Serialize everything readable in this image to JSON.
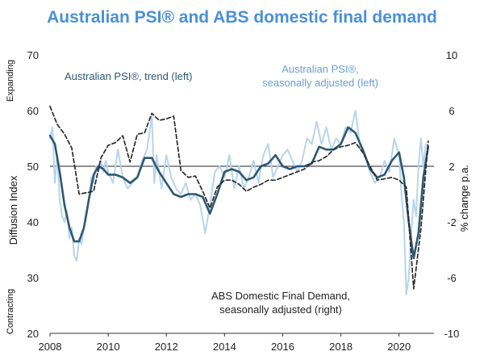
{
  "chart_data": {
    "type": "line",
    "title": "Australian PSI® and ABS domestic final demand",
    "left_axis": {
      "label": "Diffusion Index",
      "range": [
        20,
        70
      ],
      "ticks": [
        "20",
        "30",
        "40",
        "50",
        "60",
        "70"
      ],
      "top_label": "Expanding",
      "bottom_label": "Contracting"
    },
    "right_axis": {
      "label": "% change p.a.",
      "range": [
        -10,
        10
      ],
      "ticks": [
        "-10",
        "-6",
        "-2",
        "2",
        "6",
        "10"
      ]
    },
    "x_axis": {
      "range": [
        2008,
        2021.2
      ],
      "ticks": [
        "2008",
        "2010",
        "2012",
        "2014",
        "2016",
        "2018",
        "2020"
      ]
    },
    "reference_line": 50,
    "series": [
      {
        "name": "Australian PSI®, seasonally adjusted (left)",
        "axis": "left",
        "color": "#b8d4ec",
        "x": [
          2008.0,
          2008.083,
          2008.167,
          2008.25,
          2008.333,
          2008.417,
          2008.5,
          2008.583,
          2008.667,
          2008.75,
          2008.833,
          2008.917,
          2009.0,
          2009.083,
          2009.167,
          2009.25,
          2009.333,
          2009.417,
          2009.5,
          2009.583,
          2009.667,
          2009.75,
          2009.833,
          2009.917,
          2010.0,
          2010.167,
          2010.333,
          2010.5,
          2010.667,
          2010.833,
          2011.0,
          2011.167,
          2011.333,
          2011.5,
          2011.583,
          2011.667,
          2011.833,
          2012.0,
          2012.167,
          2012.333,
          2012.5,
          2012.667,
          2012.833,
          2013.0,
          2013.167,
          2013.333,
          2013.5,
          2013.667,
          2013.833,
          2014.0,
          2014.167,
          2014.333,
          2014.5,
          2014.667,
          2014.833,
          2015.0,
          2015.167,
          2015.333,
          2015.5,
          2015.667,
          2015.833,
          2016.0,
          2016.167,
          2016.333,
          2016.5,
          2016.667,
          2016.833,
          2017.0,
          2017.167,
          2017.333,
          2017.5,
          2017.667,
          2017.833,
          2018.0,
          2018.167,
          2018.333,
          2018.5,
          2018.667,
          2018.833,
          2019.0,
          2019.167,
          2019.333,
          2019.5,
          2019.667,
          2019.833,
          2020.0,
          2020.083,
          2020.167,
          2020.25,
          2020.333,
          2020.417,
          2020.5,
          2020.583,
          2020.667,
          2020.75,
          2020.833,
          2020.917
        ],
        "values": [
          55,
          57,
          47,
          52,
          44,
          41,
          40,
          42,
          37,
          39,
          34,
          33,
          37,
          36,
          39,
          41,
          44,
          48,
          47,
          50,
          49,
          51,
          49,
          51,
          49,
          47,
          53,
          48,
          46,
          47,
          48,
          51,
          53,
          59,
          47,
          52,
          46,
          52,
          48,
          46,
          45,
          47,
          44,
          45,
          43,
          38,
          43,
          49,
          50,
          48,
          52,
          46,
          50,
          46,
          48,
          51,
          47,
          52,
          54,
          48,
          50,
          52,
          53,
          51,
          49,
          51,
          55,
          54,
          58,
          54,
          57,
          53,
          55,
          54,
          57,
          56,
          60,
          53,
          52,
          49,
          47,
          48,
          51,
          49,
          55,
          52,
          45,
          40,
          27,
          30,
          38,
          44,
          41,
          50,
          55,
          50,
          54
        ]
      },
      {
        "name": "Australian PSI®, trend (left)",
        "axis": "left",
        "color": "#2e5871",
        "x": [
          2008.0,
          2008.167,
          2008.333,
          2008.5,
          2008.667,
          2008.833,
          2009.0,
          2009.167,
          2009.333,
          2009.5,
          2009.667,
          2009.833,
          2010.0,
          2010.25,
          2010.5,
          2010.75,
          2011.0,
          2011.25,
          2011.5,
          2011.75,
          2012.0,
          2012.25,
          2012.5,
          2012.75,
          2013.0,
          2013.25,
          2013.5,
          2013.75,
          2014.0,
          2014.25,
          2014.5,
          2014.75,
          2015.0,
          2015.25,
          2015.5,
          2015.75,
          2016.0,
          2016.25,
          2016.5,
          2016.75,
          2017.0,
          2017.25,
          2017.5,
          2017.75,
          2018.0,
          2018.25,
          2018.5,
          2018.75,
          2019.0,
          2019.25,
          2019.5,
          2019.75,
          2020.0,
          2020.167,
          2020.333,
          2020.5,
          2020.667,
          2020.833,
          2021.0
        ],
        "values": [
          55.5,
          54,
          49,
          43,
          39,
          36.5,
          36.5,
          39,
          44,
          48.5,
          50,
          49.5,
          48.5,
          48.5,
          48,
          47,
          48,
          51.5,
          51.5,
          49,
          47,
          45,
          44.5,
          45,
          45,
          44.5,
          41.5,
          45,
          49,
          49.5,
          49,
          47.5,
          48,
          50,
          50.5,
          52,
          50,
          49.5,
          50,
          50,
          50.5,
          53.5,
          53,
          53,
          54,
          57,
          56,
          53,
          49.5,
          48,
          48.5,
          51,
          52.5,
          48,
          40,
          33.5,
          38,
          48,
          53.5
        ]
      },
      {
        "name": "ABS Domestic Final Demand, seasonally adjusted (right)",
        "axis": "right",
        "color": "#2a2a2a",
        "dashed": true,
        "x": [
          2008.0,
          2008.25,
          2008.5,
          2008.75,
          2009.0,
          2009.25,
          2009.5,
          2009.75,
          2010.0,
          2010.25,
          2010.5,
          2010.75,
          2011.0,
          2011.25,
          2011.5,
          2011.75,
          2012.0,
          2012.25,
          2012.5,
          2012.75,
          2013.0,
          2013.25,
          2013.5,
          2013.75,
          2014.0,
          2014.25,
          2014.5,
          2014.75,
          2015.0,
          2015.25,
          2015.5,
          2015.75,
          2016.0,
          2016.25,
          2016.5,
          2016.75,
          2017.0,
          2017.25,
          2017.5,
          2017.75,
          2018.0,
          2018.25,
          2018.5,
          2018.75,
          2019.0,
          2019.25,
          2019.5,
          2019.75,
          2020.0,
          2020.25,
          2020.5,
          2020.75,
          2021.0
        ],
        "values": [
          6.3,
          5,
          4.3,
          3.3,
          0,
          0.1,
          0.2,
          2.6,
          3.5,
          3.7,
          4.2,
          2.3,
          4.3,
          4.4,
          5.8,
          5.3,
          5.4,
          5.6,
          1.7,
          1.2,
          1.3,
          0.2,
          -1,
          0.5,
          1.0,
          1.0,
          0.7,
          0.2,
          0.5,
          0.7,
          1.0,
          1.0,
          1.2,
          1.4,
          1.6,
          1.8,
          2.3,
          2.4,
          2.7,
          3.2,
          3.4,
          3.5,
          3.7,
          3.0,
          2.0,
          1.0,
          1.1,
          1.2,
          1.0,
          0.5,
          -6.8,
          -2.5,
          3.8
        ]
      }
    ]
  },
  "annotations": {
    "trend_label": "Australian PSI®, trend (left)",
    "sa_label_line1": "Australian PSI®,",
    "sa_label_line2": "seasonally adjusted (left)",
    "abs_label_line1": "ABS Domestic Final Demand,",
    "abs_label_line2": "seasonally adjusted (right)"
  }
}
